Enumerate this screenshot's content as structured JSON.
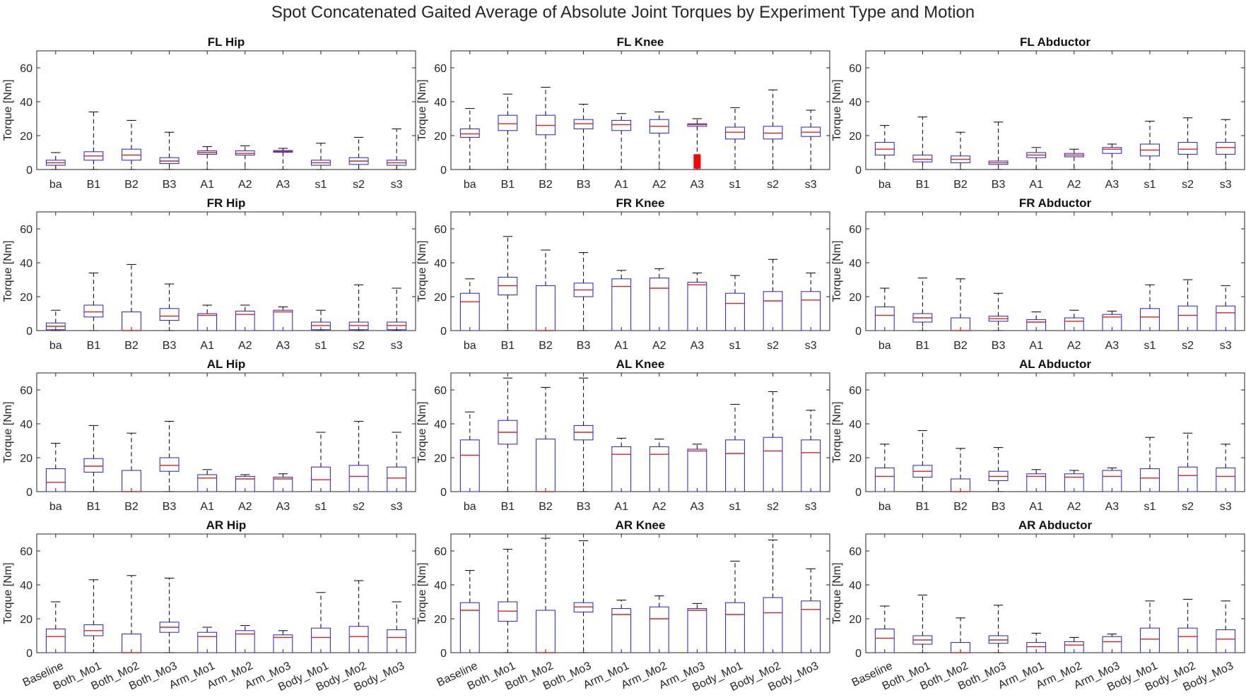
{
  "figure_title": "Spot Concatenated Gaited Average of Absolute Joint Torques by Experiment Type and Motion",
  "colors": {
    "box": "#1f1fd6",
    "median": "#e02020",
    "whisker": "#000000",
    "axis": "#262626",
    "outlier": "#ff0000"
  },
  "short_categories": [
    "ba",
    "B1",
    "B2",
    "B3",
    "A1",
    "A2",
    "A3",
    "s1",
    "s2",
    "s3"
  ],
  "long_categories": [
    "Baseline",
    "Both_Mo1",
    "Both_Mo2",
    "Both_Mo3",
    "Arm_Mo1",
    "Arm_Mo2",
    "Arm_Mo3",
    "Body_Mo1",
    "Body_Mo2",
    "Body_Mo3"
  ],
  "chart_data": [
    {
      "type": "box",
      "title": "FL Hip",
      "ylabel": "Torque [Nm]",
      "ylim": [
        0,
        70
      ],
      "yticks": [
        0,
        20,
        40,
        60
      ],
      "tick_set": "short",
      "boxes": [
        [
          0,
          2.5,
          4,
          5.5,
          10
        ],
        [
          0,
          5.5,
          8,
          10.5,
          34
        ],
        [
          0,
          5.5,
          8.5,
          12,
          29
        ],
        [
          0,
          3.5,
          5,
          7,
          22
        ],
        [
          0,
          9,
          10,
          11,
          13.5
        ],
        [
          0,
          8.5,
          9.5,
          11,
          14
        ],
        [
          0,
          10.2,
          10.7,
          11.2,
          12.5
        ],
        [
          0,
          2.5,
          4,
          5.5,
          15.5
        ],
        [
          0,
          3,
          5,
          7,
          19
        ],
        [
          0,
          2.5,
          4,
          5.5,
          24
        ]
      ]
    },
    {
      "type": "box",
      "title": "FL Knee",
      "ylabel": "Torque [Nm]",
      "ylim": [
        0,
        70
      ],
      "yticks": [
        0,
        20,
        40,
        60
      ],
      "tick_set": "short",
      "boxes": [
        [
          0,
          19,
          21,
          24,
          36
        ],
        [
          0,
          23,
          27,
          32,
          44.5
        ],
        [
          0,
          20.5,
          26,
          32,
          48.5
        ],
        [
          0,
          24,
          27,
          29.5,
          38.5
        ],
        [
          0,
          23,
          26.5,
          29,
          33
        ],
        [
          0,
          21.5,
          25.5,
          29.5,
          34
        ],
        [
          0,
          25.5,
          26.5,
          27,
          30
        ],
        [
          0,
          18,
          22,
          25,
          36.5
        ],
        [
          0,
          18,
          21.5,
          25.5,
          47
        ],
        [
          0,
          19.5,
          22,
          25,
          35
        ]
      ],
      "outliers": [
        {
          "index": 6,
          "from": 0.5,
          "to": 9
        }
      ]
    },
    {
      "type": "box",
      "title": "FL Abductor",
      "ylabel": "Torque [Nm]",
      "ylim": [
        0,
        70
      ],
      "yticks": [
        0,
        20,
        40,
        60
      ],
      "tick_set": "short",
      "boxes": [
        [
          0,
          8.5,
          12,
          16,
          26
        ],
        [
          0,
          4.5,
          6,
          8.5,
          31
        ],
        [
          0,
          4,
          6,
          8,
          22
        ],
        [
          0,
          3,
          4,
          5,
          28
        ],
        [
          0,
          7,
          8.5,
          10,
          13
        ],
        [
          0,
          7.5,
          8.5,
          9.5,
          12
        ],
        [
          0,
          9.5,
          12,
          13,
          15
        ],
        [
          0,
          8,
          11.5,
          15,
          28.5
        ],
        [
          0,
          9,
          12,
          16,
          30.5
        ],
        [
          0,
          9,
          13,
          16,
          29.5
        ]
      ]
    },
    {
      "type": "box",
      "title": "FR Hip",
      "ylabel": "Torque [Nm]",
      "ylim": [
        0,
        70
      ],
      "yticks": [
        0,
        20,
        40,
        60
      ],
      "tick_set": "short",
      "boxes": [
        [
          0,
          0.5,
          2.5,
          4.5,
          12
        ],
        [
          0,
          8,
          11,
          15,
          34
        ],
        [
          0,
          0,
          0,
          11,
          39
        ],
        [
          0,
          6,
          8.5,
          13,
          27.5
        ],
        [
          0,
          0,
          9,
          10,
          15
        ],
        [
          0,
          0,
          9.5,
          11.5,
          15
        ],
        [
          0,
          0,
          11,
          12,
          14
        ],
        [
          0,
          0.5,
          3,
          5,
          12
        ],
        [
          0,
          0.5,
          3,
          5,
          27
        ],
        [
          0,
          0.5,
          3,
          5,
          25
        ]
      ]
    },
    {
      "type": "box",
      "title": "FR Knee",
      "ylabel": "Torque [Nm]",
      "ylim": [
        0,
        70
      ],
      "yticks": [
        0,
        20,
        40,
        60
      ],
      "tick_set": "short",
      "boxes": [
        [
          0,
          0,
          17,
          22,
          30.5
        ],
        [
          0,
          21,
          26.5,
          31.5,
          55.5
        ],
        [
          0,
          0,
          0,
          26.5,
          47.5
        ],
        [
          0,
          20,
          24,
          28,
          46
        ],
        [
          0,
          0,
          26,
          30.5,
          35.5
        ],
        [
          0,
          0,
          25,
          31,
          36.5
        ],
        [
          0,
          0,
          27,
          28.5,
          34
        ],
        [
          0,
          0,
          16,
          22,
          32.5
        ],
        [
          0,
          0,
          17.5,
          23,
          42
        ],
        [
          0,
          0,
          18,
          23,
          34
        ]
      ]
    },
    {
      "type": "box",
      "title": "FR Abductor",
      "ylabel": "Torque [Nm]",
      "ylim": [
        0,
        70
      ],
      "yticks": [
        0,
        20,
        40,
        60
      ],
      "tick_set": "short",
      "boxes": [
        [
          0,
          0,
          9,
          14,
          25
        ],
        [
          0,
          5,
          7.5,
          10,
          31
        ],
        [
          0,
          0,
          0,
          7.5,
          30.5
        ],
        [
          0,
          5.5,
          7,
          8.5,
          22
        ],
        [
          0,
          0,
          5,
          6.5,
          11
        ],
        [
          0,
          0,
          5.5,
          7.5,
          12
        ],
        [
          0,
          0,
          8,
          9.5,
          11.5
        ],
        [
          0,
          0,
          8,
          13,
          27
        ],
        [
          0,
          0,
          9,
          14.5,
          30
        ],
        [
          0,
          0,
          10.5,
          14.5,
          26.5
        ]
      ]
    },
    {
      "type": "box",
      "title": "AL Hip",
      "ylabel": "Torque [Nm]",
      "ylim": [
        0,
        70
      ],
      "yticks": [
        0,
        20,
        40,
        60
      ],
      "tick_set": "short",
      "boxes": [
        [
          0,
          0,
          5.5,
          13.5,
          28.5
        ],
        [
          0,
          11.5,
          15,
          19.5,
          39
        ],
        [
          0,
          0,
          0,
          12.5,
          34.5
        ],
        [
          0,
          12,
          15.5,
          20,
          41.5
        ],
        [
          0,
          0,
          8,
          10,
          13
        ],
        [
          0,
          0,
          7.5,
          9,
          10
        ],
        [
          0,
          0,
          7.5,
          8.5,
          10.5
        ],
        [
          0,
          0,
          7,
          14.5,
          35
        ],
        [
          0,
          0,
          9,
          15.5,
          41.5
        ],
        [
          0,
          0,
          8,
          14.5,
          35
        ]
      ]
    },
    {
      "type": "box",
      "title": "AL Knee",
      "ylabel": "Torque [Nm]",
      "ylim": [
        0,
        70
      ],
      "yticks": [
        0,
        20,
        40,
        60
      ],
      "tick_set": "short",
      "boxes": [
        [
          0,
          0,
          21.5,
          30.5,
          47
        ],
        [
          0,
          28,
          35,
          42,
          67
        ],
        [
          0,
          0,
          0,
          31,
          61.5
        ],
        [
          0,
          30.5,
          35,
          39,
          67
        ],
        [
          0,
          0,
          22,
          26.5,
          31.5
        ],
        [
          0,
          0,
          22,
          26.5,
          31
        ],
        [
          0,
          0,
          24,
          25,
          28
        ],
        [
          0,
          0,
          22.5,
          30.5,
          51.5
        ],
        [
          0,
          0,
          24,
          32,
          59
        ],
        [
          0,
          0,
          23,
          30.5,
          48
        ]
      ]
    },
    {
      "type": "box",
      "title": "AL Abductor",
      "ylabel": "Torque [Nm]",
      "ylim": [
        0,
        70
      ],
      "yticks": [
        0,
        20,
        40,
        60
      ],
      "tick_set": "short",
      "boxes": [
        [
          0,
          0,
          9,
          14,
          28
        ],
        [
          0,
          8.5,
          12,
          15.5,
          36
        ],
        [
          0,
          0,
          0,
          7.5,
          25.5
        ],
        [
          0,
          6.5,
          9,
          12,
          26
        ],
        [
          0,
          0,
          9,
          10.5,
          13
        ],
        [
          0,
          0,
          8.5,
          10.5,
          12.5
        ],
        [
          0,
          0,
          9,
          12.5,
          14
        ],
        [
          0,
          0,
          8,
          13.5,
          32
        ],
        [
          0,
          0,
          9.5,
          14.5,
          34.5
        ],
        [
          0,
          0,
          9,
          14,
          28
        ]
      ]
    },
    {
      "type": "box",
      "title": "AR Hip",
      "ylabel": "Torque [Nm]",
      "ylim": [
        0,
        70
      ],
      "yticks": [
        0,
        20,
        40,
        60
      ],
      "tick_set": "long",
      "boxes": [
        [
          0,
          0,
          9.5,
          14,
          30
        ],
        [
          0,
          10,
          13,
          16.5,
          43
        ],
        [
          0,
          0,
          0,
          11,
          45.5
        ],
        [
          0,
          12,
          15,
          18,
          44
        ],
        [
          0,
          0,
          9.5,
          12,
          15
        ],
        [
          0,
          0,
          11,
          13,
          16
        ],
        [
          0,
          0,
          9,
          10.5,
          13
        ],
        [
          0,
          0,
          9,
          14.5,
          35.5
        ],
        [
          0,
          0,
          9.5,
          15.5,
          42.5
        ],
        [
          0,
          0,
          9,
          13.5,
          30
        ]
      ]
    },
    {
      "type": "box",
      "title": "AR Knee",
      "ylabel": "Torque [Nm]",
      "ylim": [
        0,
        70
      ],
      "yticks": [
        0,
        20,
        40,
        60
      ],
      "tick_set": "long",
      "boxes": [
        [
          0,
          0,
          25,
          29.5,
          48.5
        ],
        [
          0,
          18.5,
          24.5,
          30,
          61
        ],
        [
          0,
          0,
          0,
          25,
          67.5
        ],
        [
          0,
          24,
          27,
          29.5,
          66
        ],
        [
          0,
          0,
          22.5,
          26,
          31
        ],
        [
          0,
          0,
          20,
          27,
          33.5
        ],
        [
          0,
          0,
          25,
          26,
          29
        ],
        [
          0,
          0,
          22.5,
          29.5,
          54
        ],
        [
          0,
          0,
          23.5,
          32.5,
          66.5
        ],
        [
          0,
          0,
          25.5,
          30.5,
          49.5
        ]
      ]
    },
    {
      "type": "box",
      "title": "AR Abductor",
      "ylabel": "Torque [Nm]",
      "ylim": [
        0,
        70
      ],
      "yticks": [
        0,
        20,
        40,
        60
      ],
      "tick_set": "long",
      "boxes": [
        [
          0,
          0,
          8.5,
          14,
          27.5
        ],
        [
          0,
          5,
          7.5,
          10,
          34
        ],
        [
          0,
          0,
          0,
          6,
          20.5
        ],
        [
          0,
          5.5,
          7.5,
          10,
          28
        ],
        [
          0,
          0,
          3.5,
          6,
          11.5
        ],
        [
          0,
          0,
          4.5,
          6.5,
          9
        ],
        [
          0,
          0,
          6.5,
          9.5,
          11
        ],
        [
          0,
          0,
          8,
          14.5,
          30.5
        ],
        [
          0,
          0,
          9.5,
          14.5,
          31.5
        ],
        [
          0,
          0,
          8,
          13.5,
          30.5
        ]
      ]
    }
  ]
}
